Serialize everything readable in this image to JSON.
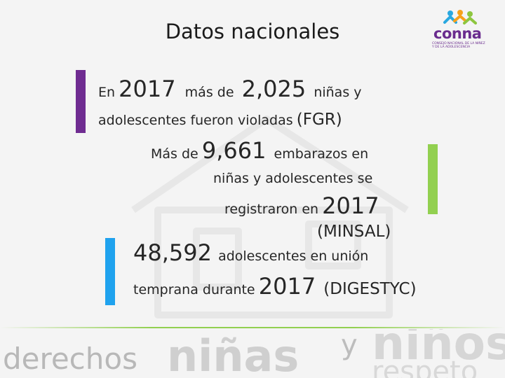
{
  "title": "Datos nacionales",
  "logo": {
    "icon": "children-figures-icon",
    "word": "conna",
    "subtitle": "CONSEJO NACIONAL DE LA NIÑEZ Y DE LA ADOLESCENCIA"
  },
  "stat1": {
    "line1_a": "En",
    "line1_year": "2017",
    "line1_b": "más de",
    "line1_num": "2,025",
    "line1_c": "niñas y",
    "line2_a": "adolescentes fueron violadas",
    "line2_src": "(FGR)"
  },
  "stat2": {
    "line1_a": "Más de",
    "line1_num": "9,661",
    "line1_b": "embarazos en",
    "line2": "niñas y adolescentes se",
    "line3_a": "registraron en",
    "line3_year": "2017",
    "line4_src": "(MINSAL)"
  },
  "stat3": {
    "line1_num": "48,592",
    "line1_a": "adolescentes en unión",
    "line2_a": "temprana durante",
    "line2_year": "2017",
    "line2_src": "(DIGESTYC)"
  },
  "footer": {
    "w1": "derechos",
    "w2": "niñas",
    "w3": "y",
    "w4": "niños",
    "w5": "respeto"
  },
  "colors": {
    "purple": "#6f2c91",
    "green": "#92d050",
    "blue": "#1fa2ee"
  }
}
